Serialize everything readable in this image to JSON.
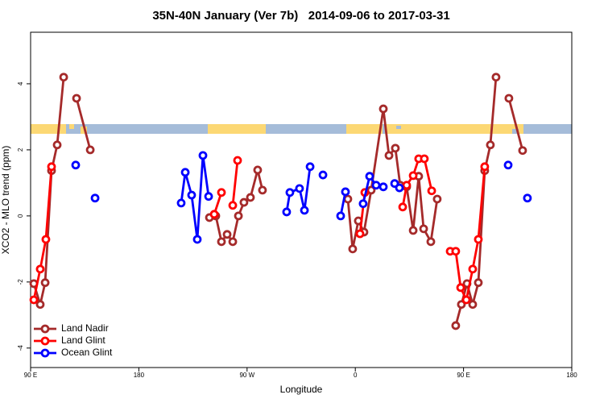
{
  "chart_data": {
    "type": "line",
    "title": "35N-40N January (Ver 7b)   2014-09-06 to 2017-03-31",
    "xlabel": "Longitude",
    "ylabel": "XCO2 - MLO trend (ppm)",
    "xlim": [
      90,
      540
    ],
    "ylim": [
      -4.59,
      5.56
    ],
    "xticks": [
      {
        "value": 90,
        "label": "90 E"
      },
      180,
      {
        "value": 270,
        "label": "90 W"
      },
      {
        "value": 360,
        "label": "0"
      },
      {
        "value": 450,
        "label": "90 E"
      },
      {
        "value": 540,
        "label": "180"
      }
    ],
    "yticks": [
      -4,
      -2,
      0,
      2,
      4
    ],
    "legend": "bottom-left",
    "series": [
      {
        "name": "Land Nadir",
        "color": "#a52a2a",
        "x": [
          92.7,
          98.0,
          102.1,
          107.4,
          112.1,
          117.5,
          null,
          128.2,
          139.6,
          null,
          238.7,
          244.0,
          248.7,
          253.4,
          258.1,
          262.8,
          267.4,
          272.8,
          278.8,
          282.8,
          null,
          353.8,
          357.8,
          362.5,
          367.2,
          373.2,
          383.3,
          388.0,
          393.3,
          397.3,
          402.7,
          408.1,
          412.7,
          416.8,
          422.8,
          428.1,
          null,
          443.5,
          448.2,
          452.9,
          457.6,
          462.3,
          467.6,
          472.3,
          477.0,
          null,
          487.7,
          499.1
        ],
        "values": [
          -2.05,
          -2.68,
          -2.02,
          1.37,
          2.15,
          4.2,
          null,
          3.56,
          2.0,
          null,
          -0.05,
          0,
          -0.78,
          -0.56,
          -0.78,
          0,
          0.41,
          0.56,
          1.39,
          0.78,
          null,
          0.51,
          -1.0,
          -0.15,
          -0.49,
          0.78,
          3.24,
          1.83,
          2.05,
          0.93,
          0.88,
          -0.44,
          1.2,
          -0.39,
          -0.78,
          0.51,
          null,
          -3.32,
          -2.68,
          -2.05,
          -2.68,
          -2.02,
          1.37,
          2.15,
          4.2,
          null,
          3.56,
          1.98
        ]
      },
      {
        "name": "Land Glint",
        "color": "#ff0000",
        "x": [
          92.7,
          98.0,
          102.7,
          107.4,
          null,
          242.7,
          248.7,
          null,
          258.1,
          262.1,
          null,
          363.9,
          367.9,
          null,
          399.4,
          402.7,
          408.1,
          412.7,
          417.4,
          423.5,
          null,
          438.9,
          443.5,
          447.6,
          452.3,
          457.6,
          462.3,
          467.6
        ],
        "values": [
          -2.54,
          -1.61,
          -0.71,
          1.49,
          null,
          0.05,
          0.71,
          null,
          0.32,
          1.68,
          null,
          -0.54,
          0.71,
          null,
          0.27,
          0.93,
          1.22,
          1.73,
          1.73,
          0.76,
          null,
          -1.07,
          -1.07,
          -2.17,
          -2.54,
          -1.61,
          -0.71,
          1.49
        ]
      },
      {
        "name": "Ocean Glint",
        "color": "#0000ff",
        "x": [
          127.5,
          null,
          143.6,
          null,
          215.2,
          218.6,
          223.9,
          228.6,
          233.3,
          238.0,
          null,
          302.9,
          305.6,
          313.6,
          317.7,
          322.4,
          null,
          333.1,
          null,
          347.8,
          351.8,
          null,
          366.5,
          371.9,
          377.3,
          383.3,
          null,
          392.7,
          396.7,
          null,
          487.1,
          null,
          503.1
        ],
        "values": [
          1.54,
          null,
          0.54,
          null,
          0.39,
          1.32,
          0.63,
          -0.71,
          1.83,
          0.59,
          null,
          0.12,
          0.71,
          0.83,
          0.17,
          1.49,
          null,
          1.24,
          null,
          0,
          0.73,
          null,
          0.37,
          1.2,
          0.93,
          0.88,
          null,
          0.98,
          0.85,
          null,
          1.54,
          null,
          0.54
        ]
      }
    ]
  }
}
